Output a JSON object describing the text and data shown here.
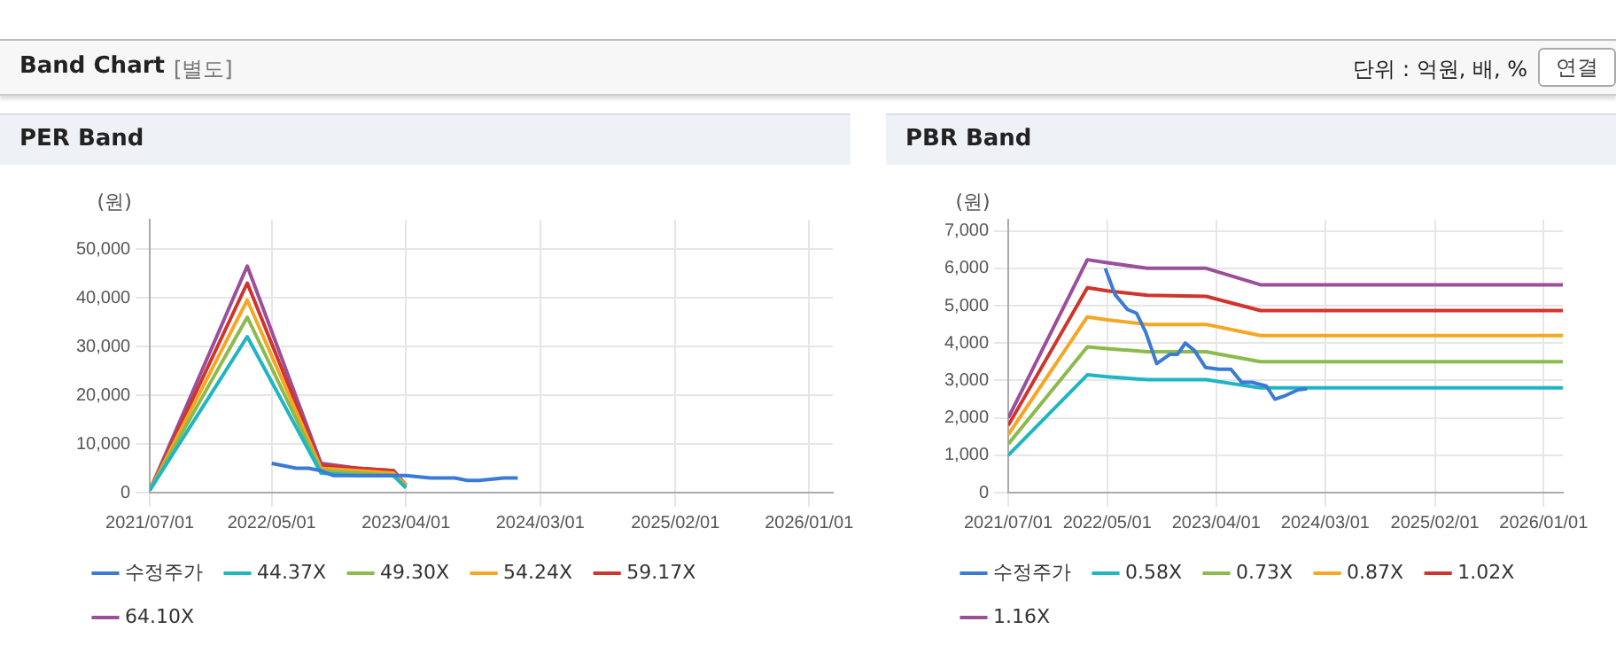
{
  "chart_data": [
    {
      "type": "other",
      "title": "Band Chart",
      "annotations": [
        "[별도]",
        "단위 : 억원, 배, %",
        "연결"
      ]
    },
    {
      "type": "line",
      "title": "PER Band",
      "ylabel": "(원)",
      "xlim": [
        "2021-07-01",
        "2026-03-01"
      ],
      "ylim": [
        0,
        56000
      ],
      "xticks": [
        {
          "value": "2021-07-01",
          "label": "2021/07/01"
        },
        {
          "value": "2022-05-01",
          "label": "2022/05/01"
        },
        {
          "value": "2023-04-01",
          "label": "2023/04/01"
        },
        {
          "value": "2024-03-01",
          "label": "2024/03/01"
        },
        {
          "value": "2025-02-01",
          "label": "2025/02/01"
        },
        {
          "value": "2026-01-01",
          "label": "2026/01/01"
        }
      ],
      "yticks": [
        0,
        {
          "value": 10000,
          "label": "10,000"
        },
        {
          "value": 20000,
          "label": "20,000"
        },
        {
          "value": 30000,
          "label": "30,000"
        },
        {
          "value": 40000,
          "label": "40,000"
        },
        {
          "value": 50000,
          "label": "50,000"
        }
      ],
      "grid": true,
      "legend": "bottom",
      "marker": "none",
      "series": [
        {
          "name": "수정주가",
          "color": "#3a7bd5",
          "x": [
            "2022-05-01",
            "2022-06-01",
            "2022-07-01",
            "2022-08-01",
            "2022-09-01",
            "2022-10-01",
            "2022-12-01",
            "2023-02-01",
            "2023-04-01",
            "2023-06-01",
            "2023-08-01",
            "2023-09-01",
            "2023-10-01",
            "2023-12-01",
            "2024-01-05"
          ],
          "values": [
            6000,
            5500,
            5000,
            5000,
            4500,
            3500,
            3500,
            3500,
            3500,
            3000,
            3000,
            2500,
            2500,
            3000,
            3000
          ]
        },
        {
          "name": "44.37X",
          "color": "#1fb5c5",
          "x": [
            "2021-07-01",
            "2022-03-01",
            "2022-09-01",
            "2022-12-01",
            "2023-03-01",
            "2023-04-01"
          ],
          "values": [
            500,
            32000,
            4000,
            3500,
            3500,
            1000
          ]
        },
        {
          "name": "49.30X",
          "color": "#8bbb4b",
          "x": [
            "2021-07-01",
            "2022-03-01",
            "2022-09-01",
            "2022-12-01",
            "2023-03-01",
            "2023-04-01"
          ],
          "values": [
            500,
            36000,
            4500,
            4000,
            3500,
            1000
          ]
        },
        {
          "name": "54.24X",
          "color": "#f5a623",
          "x": [
            "2021-07-01",
            "2022-03-01",
            "2022-09-01",
            "2022-12-01",
            "2023-03-01",
            "2023-04-01"
          ],
          "values": [
            500,
            39500,
            5000,
            4500,
            4000,
            1500
          ]
        },
        {
          "name": "59.17X",
          "color": "#d0342c",
          "x": [
            "2021-07-01",
            "2022-03-01",
            "2022-09-01",
            "2022-12-01",
            "2023-03-01",
            "2023-04-01"
          ],
          "values": [
            500,
            43000,
            5500,
            5000,
            4500,
            1500
          ]
        },
        {
          "name": "64.10X",
          "color": "#9b4f9b",
          "x": [
            "2021-07-01",
            "2022-03-01",
            "2022-09-01",
            "2022-12-01",
            "2023-03-01",
            "2023-04-01"
          ],
          "values": [
            500,
            46500,
            6000,
            5000,
            4500,
            1500
          ]
        }
      ]
    },
    {
      "type": "line",
      "title": "PBR Band",
      "ylabel": "(원)",
      "xlim": [
        "2021-07-01",
        "2026-03-01"
      ],
      "ylim": [
        0,
        7300
      ],
      "xticks": [
        {
          "value": "2021-07-01",
          "label": "2021/07/01"
        },
        {
          "value": "2022-05-01",
          "label": "2022/05/01"
        },
        {
          "value": "2023-04-01",
          "label": "2023/04/01"
        },
        {
          "value": "2024-03-01",
          "label": "2024/03/01"
        },
        {
          "value": "2025-02-01",
          "label": "2025/02/01"
        },
        {
          "value": "2026-01-01",
          "label": "2026/01/01"
        }
      ],
      "yticks": [
        0,
        {
          "value": 1000,
          "label": "1,000"
        },
        {
          "value": 2000,
          "label": "2,000"
        },
        {
          "value": 3000,
          "label": "3,000"
        },
        {
          "value": 4000,
          "label": "4,000"
        },
        {
          "value": 5000,
          "label": "5,000"
        },
        {
          "value": 6000,
          "label": "6,000"
        },
        {
          "value": 7000,
          "label": "7,000"
        }
      ],
      "grid": true,
      "legend": "bottom",
      "marker": "none",
      "series": [
        {
          "name": "수정주가",
          "color": "#3a7bd5",
          "x": [
            "2022-04-25",
            "2022-05-25",
            "2022-07-02",
            "2022-07-30",
            "2022-08-27",
            "2022-09-30",
            "2022-11-10",
            "2022-12-03",
            "2022-12-27",
            "2023-01-24",
            "2023-02-27",
            "2023-04-09",
            "2023-05-16",
            "2023-06-18",
            "2023-07-20",
            "2023-09-02",
            "2023-09-28",
            "2023-11-01",
            "2023-12-08",
            "2024-01-05"
          ],
          "values": [
            6000,
            5300,
            4900,
            4800,
            4300,
            3450,
            3700,
            3700,
            4000,
            3800,
            3350,
            3300,
            3300,
            2950,
            2950,
            2850,
            2500,
            2600,
            2750,
            2780
          ]
        },
        {
          "name": "0.58X",
          "color": "#1fb5c5",
          "x": [
            "2021-07-01",
            "2022-03-01",
            "2022-05-01",
            "2022-09-01",
            "2023-03-01",
            "2023-08-15",
            "2026-03-01"
          ],
          "values": [
            1000,
            3150,
            3100,
            3020,
            3020,
            2800,
            2800
          ]
        },
        {
          "name": "0.73X",
          "color": "#8bbb4b",
          "x": [
            "2021-07-01",
            "2022-03-01",
            "2022-05-01",
            "2022-09-01",
            "2023-03-01",
            "2023-08-15",
            "2026-03-01"
          ],
          "values": [
            1300,
            3900,
            3850,
            3770,
            3770,
            3500,
            3500
          ]
        },
        {
          "name": "0.87X",
          "color": "#f5a623",
          "x": [
            "2021-07-01",
            "2022-03-01",
            "2022-05-01",
            "2022-09-01",
            "2023-03-01",
            "2023-08-15",
            "2026-03-01"
          ],
          "values": [
            1550,
            4700,
            4620,
            4500,
            4500,
            4200,
            4200
          ]
        },
        {
          "name": "1.02X",
          "color": "#d0342c",
          "x": [
            "2021-07-01",
            "2022-03-01",
            "2022-05-01",
            "2022-09-01",
            "2023-03-01",
            "2023-08-15",
            "2026-03-01"
          ],
          "values": [
            1800,
            5480,
            5400,
            5280,
            5250,
            4870,
            4870
          ]
        },
        {
          "name": "1.16X",
          "color": "#9b4f9b",
          "x": [
            "2021-07-01",
            "2022-03-01",
            "2022-05-01",
            "2022-09-01",
            "2023-03-01",
            "2023-08-15",
            "2026-03-01"
          ],
          "values": [
            2000,
            6230,
            6150,
            6000,
            6000,
            5560,
            5560
          ]
        }
      ]
    }
  ]
}
